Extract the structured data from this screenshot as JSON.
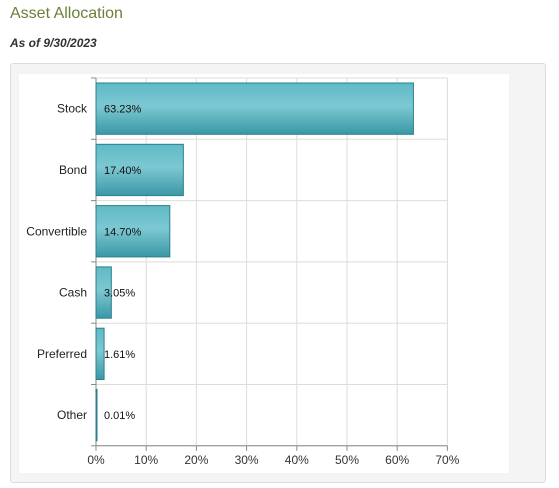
{
  "page": {
    "title": "Asset Allocation",
    "as_of": "As of 9/30/2023"
  },
  "chart_data": {
    "type": "bar",
    "orientation": "horizontal",
    "categories": [
      "Stock",
      "Bond",
      "Convertible",
      "Cash",
      "Preferred",
      "Other"
    ],
    "values": [
      63.23,
      17.4,
      14.7,
      3.05,
      1.61,
      0.01
    ],
    "value_labels": [
      "63.23%",
      "17.40%",
      "14.70%",
      "3.05%",
      "1.61%",
      "0.01%"
    ],
    "xlim": [
      0,
      70
    ],
    "x_ticks": [
      "0%",
      "10%",
      "20%",
      "30%",
      "40%",
      "50%",
      "60%",
      "70%"
    ],
    "grid": true,
    "bar_color": "#4fb0bd",
    "bar_edge_color": "#2a7f8a"
  }
}
